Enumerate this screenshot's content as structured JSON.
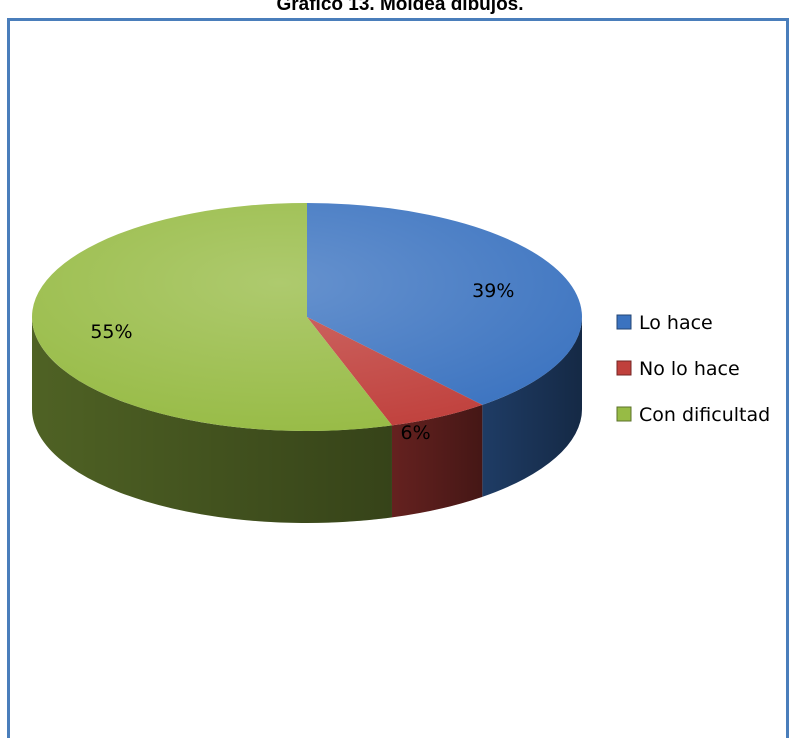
{
  "chart_data": {
    "type": "pie",
    "title": "Gráfico  13. Moldea dibujos.",
    "categories": [
      "Lo hace",
      "No lo hace",
      "Con dificultad"
    ],
    "values": [
      39,
      6,
      55
    ],
    "value_labels": [
      "39%",
      "6%",
      "55%"
    ],
    "colors": [
      "#3b73c0",
      "#c0403c",
      "#97bb45"
    ],
    "legend_position": "right"
  }
}
